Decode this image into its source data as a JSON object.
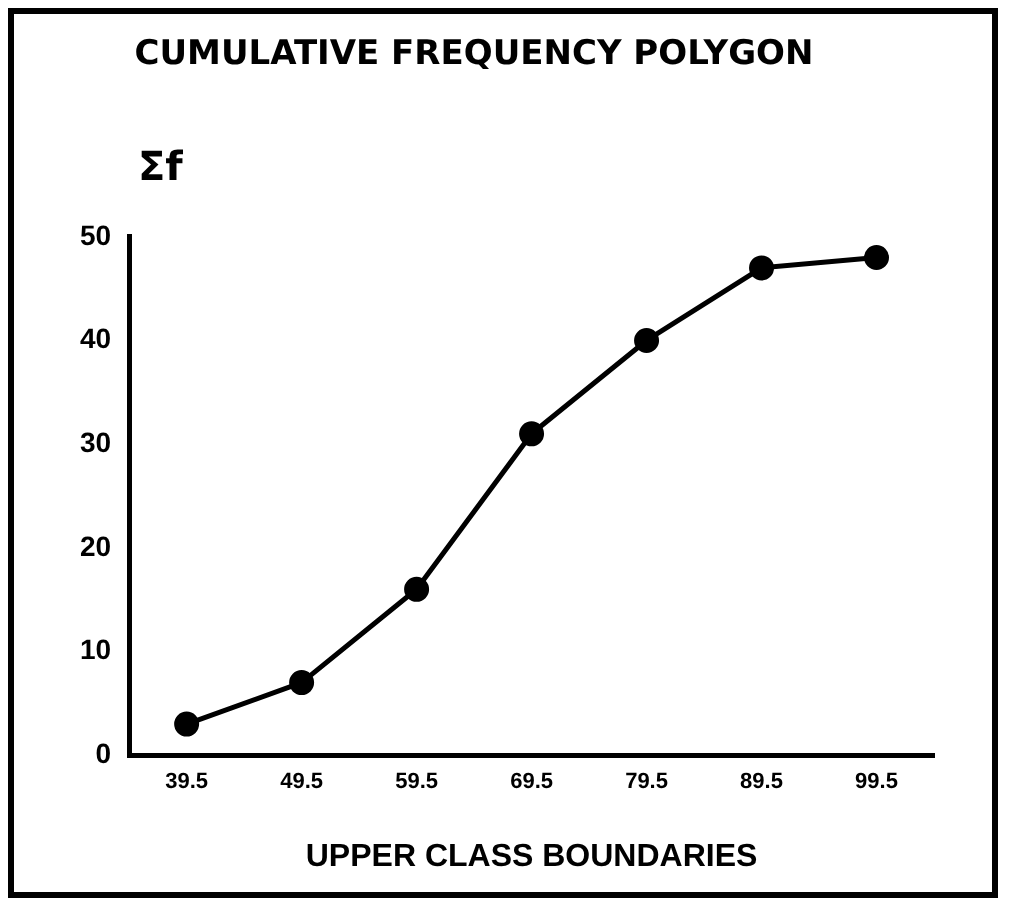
{
  "chart_data": {
    "type": "line",
    "title": "CUMULATIVE FREQUENCY POLYGON",
    "xlabel": "UPPER CLASS BOUNDARIES",
    "ylabel": "Σf",
    "categories": [
      "39.5",
      "49.5",
      "59.5",
      "69.5",
      "79.5",
      "89.5",
      "99.5"
    ],
    "series": [
      {
        "color": "#000000",
        "values": [
          3,
          7,
          16,
          31,
          40,
          47,
          48
        ]
      }
    ],
    "ylim": [
      0,
      50
    ],
    "yticks": [
      0,
      10,
      20,
      30,
      40,
      50
    ],
    "grid": false,
    "legend": false,
    "marker": "circle",
    "line_style": "solid"
  }
}
